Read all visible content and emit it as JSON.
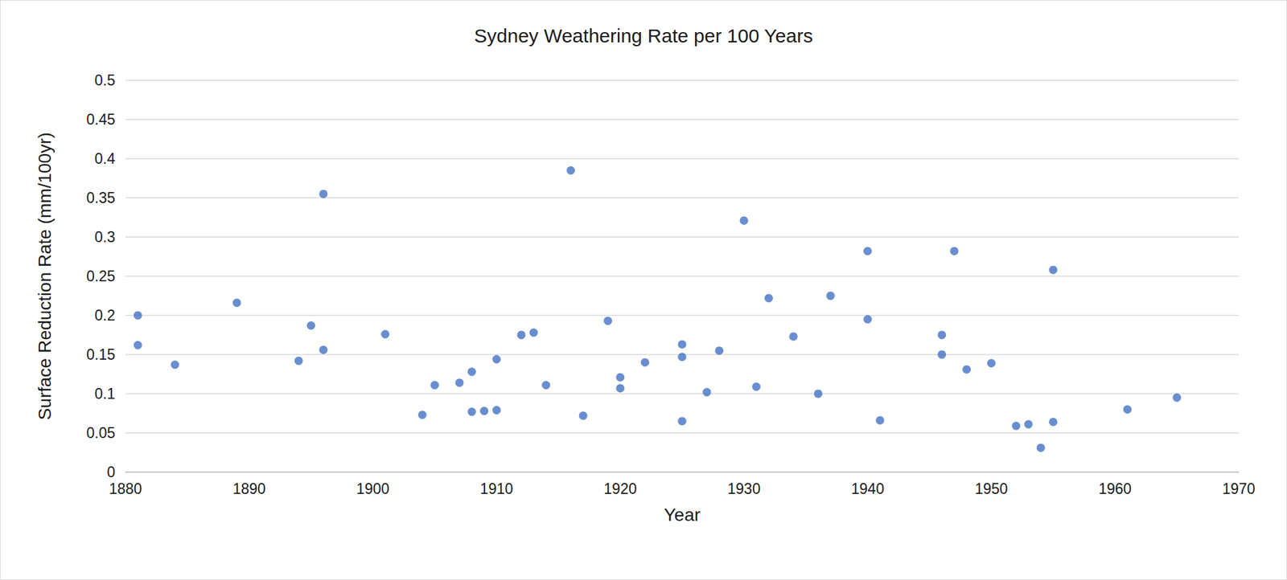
{
  "chart_data": {
    "type": "scatter",
    "title": "Sydney Weathering Rate per 100 Years",
    "x_label": "Year",
    "y_label": "Surface Reduction Rate (mm/100yr)",
    "x": [
      1881,
      1881,
      1884,
      1889,
      1894,
      1895,
      1896,
      1896,
      1901,
      1904,
      1905,
      1907,
      1908,
      1908,
      1909,
      1910,
      1910,
      1912,
      1913,
      1914,
      1916,
      1917,
      1919,
      1920,
      1920,
      1922,
      1925,
      1925,
      1925,
      1927,
      1928,
      1930,
      1931,
      1932,
      1934,
      1936,
      1937,
      1940,
      1940,
      1941,
      1946,
      1946,
      1947,
      1948,
      1950,
      1952,
      1953,
      1954,
      1955,
      1955,
      1961,
      1965
    ],
    "values": [
      0.2,
      0.162,
      0.137,
      0.216,
      0.142,
      0.187,
      0.355,
      0.156,
      0.176,
      0.073,
      0.111,
      0.114,
      0.128,
      0.077,
      0.078,
      0.079,
      0.144,
      0.175,
      0.178,
      0.111,
      0.385,
      0.072,
      0.193,
      0.121,
      0.107,
      0.14,
      0.163,
      0.147,
      0.065,
      0.102,
      0.155,
      0.321,
      0.109,
      0.222,
      0.173,
      0.1,
      0.225,
      0.282,
      0.195,
      0.066,
      0.175,
      0.15,
      0.282,
      0.131,
      0.139,
      0.059,
      0.061,
      0.031,
      0.258,
      0.064,
      0.08,
      0.095
    ],
    "color": "#4472c4",
    "marker": "circle",
    "xlim": [
      1880,
      1970
    ],
    "xticks": [
      1880,
      1890,
      1900,
      1910,
      1920,
      1930,
      1940,
      1950,
      1960,
      1970
    ],
    "ylim": [
      0,
      0.5
    ],
    "yticks": [
      0,
      0.05,
      0.1,
      0.15,
      0.2,
      0.25,
      0.3,
      0.35,
      0.4,
      0.45,
      0.5
    ],
    "grid": true
  }
}
